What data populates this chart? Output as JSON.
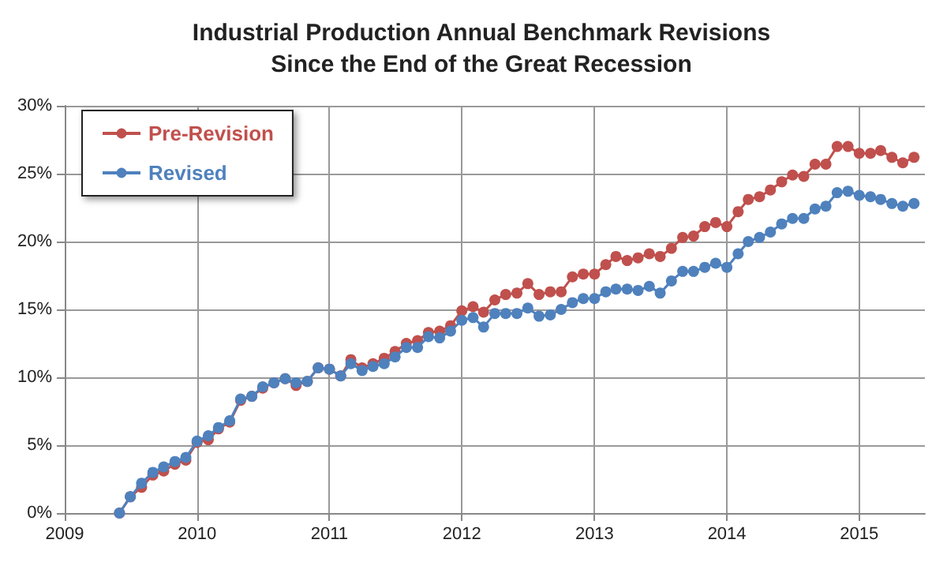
{
  "chart_data": {
    "type": "line",
    "title": "Industrial Production Annual Benchmark Revisions\nSince the End of the Great Recession",
    "x": [
      "2009-06",
      "2009-07",
      "2009-08",
      "2009-09",
      "2009-10",
      "2009-11",
      "2009-12",
      "2010-01",
      "2010-02",
      "2010-03",
      "2010-04",
      "2010-05",
      "2010-06",
      "2010-07",
      "2010-08",
      "2010-09",
      "2010-10",
      "2010-11",
      "2010-12",
      "2011-01",
      "2011-02",
      "2011-03",
      "2011-04",
      "2011-05",
      "2011-06",
      "2011-07",
      "2011-08",
      "2011-09",
      "2011-10",
      "2011-11",
      "2011-12",
      "2012-01",
      "2012-02",
      "2012-03",
      "2012-04",
      "2012-05",
      "2012-06",
      "2012-07",
      "2012-08",
      "2012-09",
      "2012-10",
      "2012-11",
      "2012-12",
      "2013-01",
      "2013-02",
      "2013-03",
      "2013-04",
      "2013-05",
      "2013-06",
      "2013-07",
      "2013-08",
      "2013-09",
      "2013-10",
      "2013-11",
      "2013-12",
      "2014-01",
      "2014-02",
      "2014-03",
      "2014-04",
      "2014-05",
      "2014-06",
      "2014-07",
      "2014-08",
      "2014-09",
      "2014-10",
      "2014-11",
      "2014-12",
      "2015-01",
      "2015-02",
      "2015-03",
      "2015-04",
      "2015-05",
      "2015-06"
    ],
    "series": [
      {
        "name": "Pre-Revision",
        "color": "#c0504d",
        "values": [
          0,
          1.2,
          1.9,
          2.8,
          3.1,
          3.6,
          3.9,
          5.2,
          5.4,
          6.2,
          6.7,
          8.3,
          8.6,
          9.2,
          9.6,
          9.9,
          9.4,
          9.7,
          10.7,
          10.6,
          10.1,
          11.3,
          10.7,
          11.0,
          11.4,
          11.9,
          12.5,
          12.7,
          13.3,
          13.4,
          13.8,
          14.9,
          15.2,
          14.8,
          15.7,
          16.1,
          16.2,
          16.9,
          16.1,
          16.3,
          16.3,
          17.4,
          17.6,
          17.6,
          18.3,
          18.9,
          18.6,
          18.8,
          19.1,
          18.9,
          19.5,
          20.3,
          20.4,
          21.1,
          21.4,
          21.1,
          22.2,
          23.1,
          23.3,
          23.8,
          24.4,
          24.9,
          24.8,
          25.7,
          25.7,
          27.0,
          27.0,
          26.5,
          26.5,
          26.7,
          26.2,
          25.8,
          26.2
        ]
      },
      {
        "name": "Revised",
        "color": "#4f81bd",
        "values": [
          0,
          1.2,
          2.2,
          3.0,
          3.4,
          3.8,
          4.1,
          5.3,
          5.7,
          6.3,
          6.8,
          8.4,
          8.6,
          9.3,
          9.6,
          9.9,
          9.6,
          9.7,
          10.7,
          10.6,
          10.1,
          11.0,
          10.5,
          10.8,
          11.0,
          11.5,
          12.2,
          12.2,
          13.0,
          12.9,
          13.4,
          14.2,
          14.4,
          13.7,
          14.7,
          14.7,
          14.7,
          15.1,
          14.5,
          14.6,
          15.0,
          15.5,
          15.8,
          15.8,
          16.3,
          16.5,
          16.5,
          16.4,
          16.7,
          16.2,
          17.1,
          17.8,
          17.8,
          18.1,
          18.4,
          18.1,
          19.1,
          20.0,
          20.3,
          20.7,
          21.3,
          21.7,
          21.7,
          22.4,
          22.6,
          23.6,
          23.7,
          23.4,
          23.3,
          23.1,
          22.8,
          22.6,
          22.8
        ]
      }
    ],
    "xlim": [
      "2009-01",
      "2015-07"
    ],
    "xticks": [
      "2009",
      "2010",
      "2011",
      "2012",
      "2013",
      "2014",
      "2015"
    ],
    "ylim": [
      0,
      30
    ],
    "yticks": [
      {
        "value": 0,
        "label": "0%"
      },
      {
        "value": 5,
        "label": "5%"
      },
      {
        "value": 10,
        "label": "10%"
      },
      {
        "value": 15,
        "label": "15%"
      },
      {
        "value": 20,
        "label": "20%"
      },
      {
        "value": 25,
        "label": "25%"
      },
      {
        "value": 30,
        "label": "30%"
      }
    ],
    "grid": true,
    "legend": "top left",
    "marker": "circle",
    "line_style": "solid"
  }
}
